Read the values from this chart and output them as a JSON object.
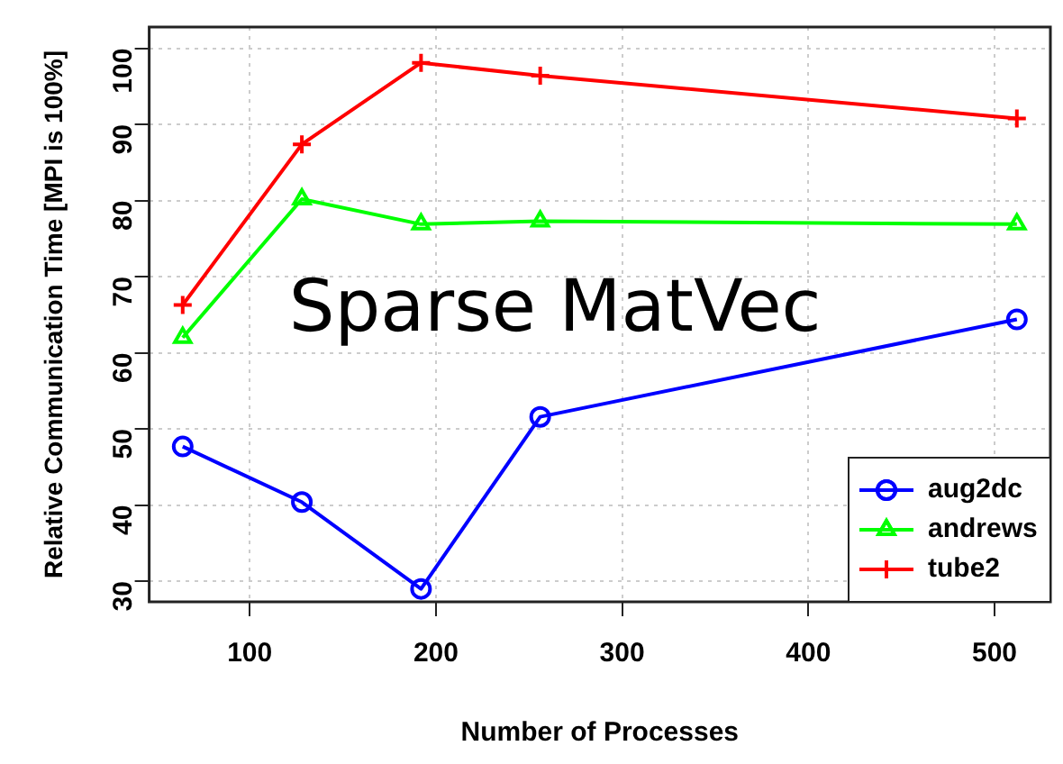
{
  "chart_data": {
    "type": "line",
    "xlabel": "Number of Processes",
    "ylabel": "Relative Communication Time [MPI is 100%]",
    "annotations": [
      "Sparse MatVec"
    ],
    "x": [
      64,
      128,
      192,
      256,
      512
    ],
    "series": [
      {
        "name": "aug2dc",
        "color": "#0000ff",
        "marker": "circle",
        "values": [
          47.7,
          40.4,
          29.0,
          51.6,
          64.4
        ]
      },
      {
        "name": "andrews",
        "color": "#00ff00",
        "marker": "triangle",
        "values": [
          62.0,
          80.2,
          76.9,
          77.3,
          76.9
        ]
      },
      {
        "name": "tube2",
        "color": "#ff0000",
        "marker": "cross",
        "values": [
          66.3,
          87.4,
          98.1,
          96.4,
          90.8
        ]
      }
    ],
    "xlim": [
      46,
      530
    ],
    "xticks": [
      100,
      200,
      300,
      400,
      500
    ],
    "ylim": [
      27.3,
      102.8
    ],
    "yticks": [
      30,
      40,
      50,
      60,
      70,
      80,
      90,
      100
    ],
    "grid": true,
    "legend": "bottom right",
    "line_style": "solid"
  }
}
